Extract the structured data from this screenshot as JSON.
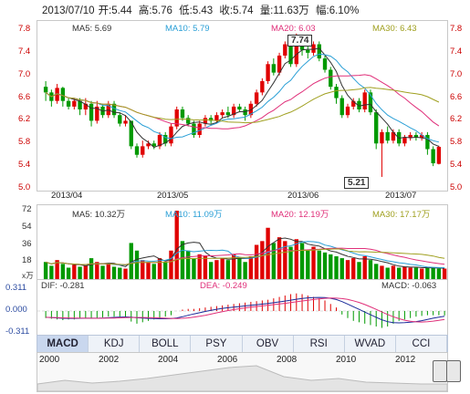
{
  "header": {
    "date": "2013/07/10",
    "open_label": "开:5.44",
    "high_label": "高:5.76",
    "low_label": "低:5.43",
    "close_label": "收:5.74",
    "volume_label": "量:11.63万",
    "change_label": "幅:6.10%"
  },
  "price_panel": {
    "ma5": "MA5: 5.69",
    "ma10": "MA10: 5.79",
    "ma20": "MA20: 6.03",
    "ma30": "MA30: 6.43",
    "high_callout": "7.74",
    "low_callout": "5.21",
    "y_ticks": [
      "7.8",
      "7.4",
      "7.0",
      "6.6",
      "6.2",
      "5.8",
      "5.4",
      "5.0"
    ],
    "x_ticks": [
      "2013/04",
      "2013/05",
      "2013/06",
      "2013/07"
    ]
  },
  "volume_panel": {
    "ma5": "MA5: 10.32万",
    "ma10": "MA10: 11.09万",
    "ma20": "MA20: 12.19万",
    "ma30": "MA30: 17.17万",
    "y_ticks": [
      "72",
      "54",
      "36",
      "18"
    ],
    "unit": "x万"
  },
  "macd_panel": {
    "dif": "DIF: -0.281",
    "dea": "DEA: -0.249",
    "macd": "MACD: -0.063",
    "y_ticks": [
      "0.311",
      "0.000",
      "-0.311"
    ]
  },
  "tabs": [
    "MACD",
    "KDJ",
    "BOLL",
    "PSY",
    "OBV",
    "RSI",
    "WVAD",
    "CCI"
  ],
  "active_tab": "MACD",
  "year_axis": [
    "2000",
    "2002",
    "2004",
    "2006",
    "2008",
    "2010",
    "2012"
  ],
  "colors": {
    "up": "#e00000",
    "down": "#009900",
    "ma5": "#333333",
    "ma10": "#2a9fd6",
    "ma20": "#e0307a",
    "ma30": "#a0a020"
  },
  "chart_data": [
    {
      "type": "candlestick",
      "title": "",
      "y_range": [
        5.0,
        7.8
      ],
      "x_labels": [
        "2013/04",
        "2013/05",
        "2013/06",
        "2013/07"
      ],
      "candles": [
        {
          "o": 6.8,
          "c": 6.7,
          "h": 6.9,
          "l": 6.55
        },
        {
          "o": 6.7,
          "c": 6.55,
          "h": 6.75,
          "l": 6.45
        },
        {
          "o": 6.55,
          "c": 6.78,
          "h": 6.85,
          "l": 6.5
        },
        {
          "o": 6.78,
          "c": 6.55,
          "h": 6.8,
          "l": 6.45
        },
        {
          "o": 6.55,
          "c": 6.45,
          "h": 6.6,
          "l": 6.4
        },
        {
          "o": 6.45,
          "c": 6.55,
          "h": 6.6,
          "l": 6.4
        },
        {
          "o": 6.55,
          "c": 6.4,
          "h": 6.6,
          "l": 6.3
        },
        {
          "o": 6.4,
          "c": 6.5,
          "h": 6.6,
          "l": 6.3
        },
        {
          "o": 6.5,
          "c": 6.2,
          "h": 6.55,
          "l": 6.1
        },
        {
          "o": 6.2,
          "c": 6.45,
          "h": 6.55,
          "l": 6.15
        },
        {
          "o": 6.45,
          "c": 6.3,
          "h": 6.5,
          "l": 6.25
        },
        {
          "o": 6.3,
          "c": 6.5,
          "h": 6.55,
          "l": 6.25
        },
        {
          "o": 6.5,
          "c": 6.3,
          "h": 6.55,
          "l": 6.25
        },
        {
          "o": 6.3,
          "c": 6.15,
          "h": 6.35,
          "l": 6.1
        },
        {
          "o": 6.15,
          "c": 6.2,
          "h": 6.3,
          "l": 6.1
        },
        {
          "o": 6.2,
          "c": 5.75,
          "h": 6.2,
          "l": 5.7
        },
        {
          "o": 5.75,
          "c": 5.6,
          "h": 5.8,
          "l": 5.55
        },
        {
          "o": 5.6,
          "c": 5.75,
          "h": 5.85,
          "l": 5.55
        },
        {
          "o": 5.75,
          "c": 5.8,
          "h": 5.85,
          "l": 5.7
        },
        {
          "o": 5.8,
          "c": 5.75,
          "h": 5.85,
          "l": 5.7
        },
        {
          "o": 5.75,
          "c": 5.95,
          "h": 6.0,
          "l": 5.7
        },
        {
          "o": 5.95,
          "c": 5.8,
          "h": 6.0,
          "l": 5.75
        },
        {
          "o": 5.8,
          "c": 6.1,
          "h": 6.15,
          "l": 5.75
        },
        {
          "o": 6.1,
          "c": 6.4,
          "h": 6.45,
          "l": 6.05
        },
        {
          "o": 6.4,
          "c": 6.25,
          "h": 6.45,
          "l": 6.2
        },
        {
          "o": 6.25,
          "c": 6.15,
          "h": 6.3,
          "l": 6.1
        },
        {
          "o": 6.15,
          "c": 5.95,
          "h": 6.2,
          "l": 5.9
        },
        {
          "o": 5.95,
          "c": 6.15,
          "h": 6.2,
          "l": 5.9
        },
        {
          "o": 6.15,
          "c": 6.25,
          "h": 6.3,
          "l": 6.1
        },
        {
          "o": 6.25,
          "c": 6.2,
          "h": 6.3,
          "l": 6.15
        },
        {
          "o": 6.2,
          "c": 6.3,
          "h": 6.35,
          "l": 6.15
        },
        {
          "o": 6.3,
          "c": 6.35,
          "h": 6.4,
          "l": 6.25
        },
        {
          "o": 6.35,
          "c": 6.3,
          "h": 6.45,
          "l": 6.25
        },
        {
          "o": 6.3,
          "c": 6.45,
          "h": 6.5,
          "l": 6.25
        },
        {
          "o": 6.45,
          "c": 6.4,
          "h": 6.5,
          "l": 6.35
        },
        {
          "o": 6.4,
          "c": 6.3,
          "h": 6.45,
          "l": 6.2
        },
        {
          "o": 6.3,
          "c": 6.5,
          "h": 6.55,
          "l": 6.25
        },
        {
          "o": 6.5,
          "c": 6.7,
          "h": 6.75,
          "l": 6.45
        },
        {
          "o": 6.7,
          "c": 6.9,
          "h": 6.95,
          "l": 6.65
        },
        {
          "o": 6.9,
          "c": 7.2,
          "h": 7.25,
          "l": 6.85
        },
        {
          "o": 7.2,
          "c": 7.05,
          "h": 7.3,
          "l": 7.0
        },
        {
          "o": 7.05,
          "c": 7.35,
          "h": 7.4,
          "l": 7.0
        },
        {
          "o": 7.35,
          "c": 7.55,
          "h": 7.6,
          "l": 7.3
        },
        {
          "o": 7.55,
          "c": 7.2,
          "h": 7.6,
          "l": 7.15
        },
        {
          "o": 7.2,
          "c": 7.7,
          "h": 7.74,
          "l": 7.15
        },
        {
          "o": 7.7,
          "c": 7.45,
          "h": 7.72,
          "l": 7.35
        },
        {
          "o": 7.45,
          "c": 7.4,
          "h": 7.55,
          "l": 7.3
        },
        {
          "o": 7.4,
          "c": 7.55,
          "h": 7.6,
          "l": 7.35
        },
        {
          "o": 7.55,
          "c": 7.3,
          "h": 7.6,
          "l": 7.25
        },
        {
          "o": 7.3,
          "c": 7.1,
          "h": 7.35,
          "l": 7.05
        },
        {
          "o": 7.1,
          "c": 6.8,
          "h": 7.15,
          "l": 6.75
        },
        {
          "o": 6.8,
          "c": 6.6,
          "h": 6.85,
          "l": 6.5
        },
        {
          "o": 6.6,
          "c": 6.3,
          "h": 6.65,
          "l": 6.25
        },
        {
          "o": 6.3,
          "c": 6.45,
          "h": 6.5,
          "l": 6.25
        },
        {
          "o": 6.45,
          "c": 6.55,
          "h": 6.6,
          "l": 6.4
        },
        {
          "o": 6.55,
          "c": 6.4,
          "h": 6.6,
          "l": 6.35
        },
        {
          "o": 6.4,
          "c": 6.7,
          "h": 6.75,
          "l": 6.35
        },
        {
          "o": 6.7,
          "c": 6.35,
          "h": 6.75,
          "l": 6.3
        },
        {
          "o": 6.35,
          "c": 5.8,
          "h": 6.4,
          "l": 5.7
        },
        {
          "o": 5.8,
          "c": 6.0,
          "h": 6.05,
          "l": 5.21
        },
        {
          "o": 6.0,
          "c": 5.85,
          "h": 6.1,
          "l": 5.8
        },
        {
          "o": 5.85,
          "c": 6.0,
          "h": 6.05,
          "l": 5.8
        },
        {
          "o": 6.0,
          "c": 5.8,
          "h": 6.05,
          "l": 5.75
        },
        {
          "o": 5.8,
          "c": 5.9,
          "h": 5.95,
          "l": 5.75
        },
        {
          "o": 5.9,
          "c": 5.95,
          "h": 6.0,
          "l": 5.85
        },
        {
          "o": 5.95,
          "c": 5.9,
          "h": 6.0,
          "l": 5.85
        },
        {
          "o": 5.9,
          "c": 5.95,
          "h": 6.0,
          "l": 5.85
        },
        {
          "o": 5.95,
          "c": 5.7,
          "h": 6.0,
          "l": 5.6
        },
        {
          "o": 5.7,
          "c": 5.45,
          "h": 5.75,
          "l": 5.4
        },
        {
          "o": 5.44,
          "c": 5.74,
          "h": 5.76,
          "l": 5.43
        }
      ]
    },
    {
      "type": "bar",
      "title": "",
      "y_range": [
        0,
        72
      ],
      "values": [
        18,
        14,
        20,
        16,
        12,
        15,
        13,
        14,
        22,
        18,
        14,
        16,
        13,
        12,
        11,
        38,
        30,
        20,
        18,
        16,
        22,
        18,
        30,
        72,
        40,
        30,
        22,
        26,
        24,
        18,
        20,
        22,
        20,
        26,
        22,
        18,
        24,
        36,
        40,
        54,
        38,
        44,
        40,
        34,
        42,
        38,
        30,
        34,
        30,
        28,
        26,
        24,
        22,
        20,
        22,
        18,
        24,
        20,
        16,
        14,
        12,
        14,
        12,
        13,
        12,
        12,
        11,
        12,
        12,
        11,
        11
      ],
      "up": [
        false,
        false,
        true,
        false,
        false,
        true,
        false,
        true,
        false,
        true,
        false,
        true,
        false,
        false,
        true,
        false,
        false,
        true,
        true,
        false,
        true,
        false,
        true,
        true,
        false,
        false,
        false,
        true,
        true,
        false,
        true,
        true,
        false,
        true,
        false,
        false,
        true,
        true,
        true,
        true,
        false,
        true,
        true,
        false,
        true,
        false,
        false,
        true,
        false,
        false,
        false,
        false,
        false,
        true,
        true,
        false,
        true,
        false,
        false,
        true,
        false,
        true,
        false,
        true,
        true,
        false,
        true,
        false,
        false,
        false,
        true
      ]
    },
    {
      "type": "macd",
      "title": "",
      "y_range": [
        -0.311,
        0.311
      ],
      "macd": [
        -0.1,
        -0.11,
        -0.12,
        -0.13,
        -0.12,
        -0.12,
        -0.11,
        -0.1,
        -0.11,
        -0.1,
        -0.09,
        -0.08,
        -0.08,
        -0.08,
        -0.09,
        -0.15,
        -0.18,
        -0.16,
        -0.14,
        -0.12,
        -0.1,
        -0.08,
        -0.06,
        0.0,
        0.02,
        0.03,
        0.03,
        0.04,
        0.05,
        0.06,
        0.07,
        0.08,
        0.09,
        0.1,
        0.11,
        0.12,
        0.13,
        0.14,
        0.15,
        0.16,
        0.18,
        0.2,
        0.22,
        0.24,
        0.25,
        0.24,
        0.22,
        0.2,
        0.18,
        0.15,
        0.1,
        0.05,
        -0.05,
        -0.1,
        -0.14,
        -0.16,
        -0.18,
        -0.2,
        -0.22,
        -0.24,
        -0.22,
        -0.18,
        -0.14,
        -0.12,
        -0.1,
        -0.08,
        -0.07,
        -0.06,
        -0.06,
        -0.06,
        -0.063
      ]
    }
  ]
}
